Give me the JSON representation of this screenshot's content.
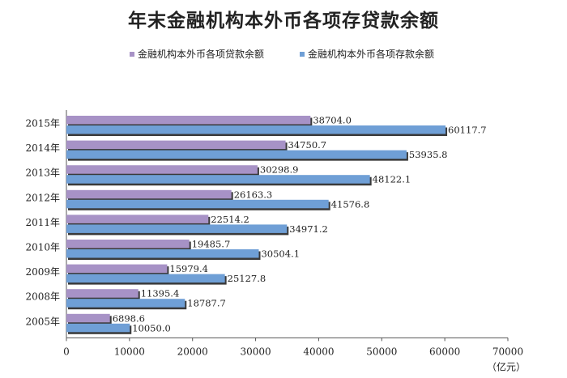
{
  "chart_data": {
    "type": "bar",
    "orientation": "horizontal",
    "title": "年末金融机构本外币各项存贷款余额",
    "unit_label": "（亿元）",
    "categories": [
      "2015年",
      "2014年",
      "2013年",
      "2012年",
      "2011年",
      "2010年",
      "2009年",
      "2008年",
      "2005年"
    ],
    "series": [
      {
        "name": "金融机构本外币各项贷款余额",
        "color": "#a792c6",
        "values": [
          38704.0,
          34750.7,
          30298.9,
          26163.3,
          22514.2,
          19485.7,
          15979.4,
          11395.4,
          6898.6
        ],
        "labels": [
          "38704.0",
          "34750.7",
          "30298.9",
          "26163.3",
          "22514.2",
          "19485.7",
          "15979.4",
          "11395.4",
          "6898.6"
        ]
      },
      {
        "name": "金融机构本外币各项存款余额",
        "color": "#6f9fd6",
        "values": [
          60117.7,
          53935.8,
          48122.1,
          41576.8,
          34971.2,
          30504.1,
          25127.8,
          18787.7,
          10050.0
        ],
        "labels": [
          "60117.7",
          "53935.8",
          "48122.1",
          "41576.8",
          "34971.2",
          "30504.1",
          "25127.8",
          "18787.7",
          "10050.0"
        ]
      }
    ],
    "xlim": [
      0,
      70000
    ],
    "xticks": [
      "0",
      "10000",
      "20000",
      "30000",
      "40000",
      "50000",
      "60000",
      "70000"
    ],
    "grid": false,
    "legend_position": "top"
  }
}
